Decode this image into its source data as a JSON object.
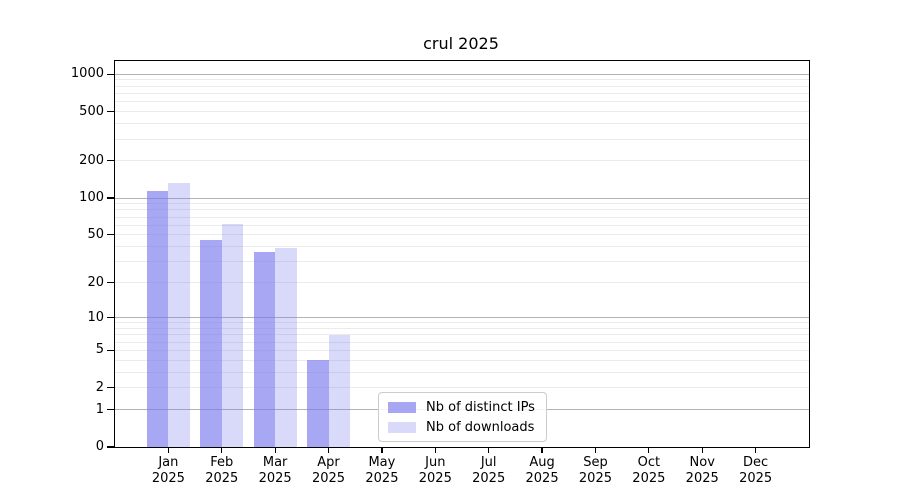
{
  "chart_data": {
    "type": "bar",
    "title": "crul 2025",
    "categories": [
      "Jan",
      "Feb",
      "Mar",
      "Apr",
      "May",
      "Jun",
      "Jul",
      "Aug",
      "Sep",
      "Oct",
      "Nov",
      "Dec"
    ],
    "year_label": "2025",
    "series": [
      {
        "name": "Nb of distinct IPs",
        "color": "rgba(120,120,238,0.65)",
        "values": [
          115,
          45,
          36,
          4,
          0,
          0,
          0,
          0,
          0,
          0,
          0,
          0
        ]
      },
      {
        "name": "Nb of downloads",
        "color": "rgba(120,120,238,0.28)",
        "values": [
          133,
          61,
          39,
          7,
          0,
          0,
          0,
          0,
          0,
          0,
          0,
          0
        ]
      }
    ],
    "y_ticks": [
      0,
      1,
      2,
      5,
      10,
      20,
      50,
      100,
      200,
      500,
      1000
    ],
    "y_scale": "log2(1+value)",
    "y_axis_max": 1280,
    "xlabel": "",
    "ylabel": "",
    "grid": {
      "orientation": "horizontal",
      "minor_color": "#ebebeb",
      "major_color": "#b3b3b3",
      "major_at": [
        1,
        10,
        100,
        1000
      ]
    },
    "legend_position": "lower center"
  },
  "frame": {
    "background": "#ffffff",
    "spine_color": "#000000",
    "legend_bg": "#ffffff",
    "legend_border": "#cccccc"
  }
}
